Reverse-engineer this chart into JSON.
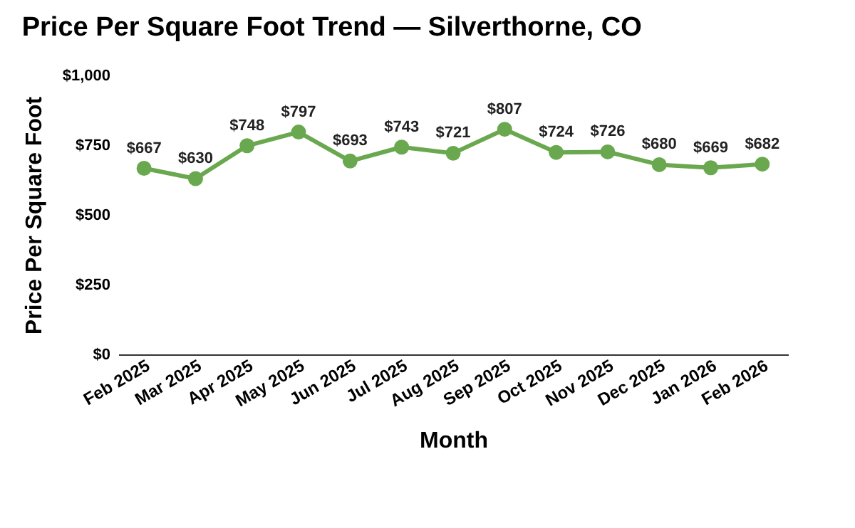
{
  "chart_data": {
    "type": "line",
    "title": "Price Per Square Foot Trend — Silverthorne, CO",
    "xlabel": "Month",
    "ylabel": "Price Per Square Foot",
    "categories": [
      "Feb 2025",
      "Mar 2025",
      "Apr 2025",
      "May 2025",
      "Jun 2025",
      "Jul 2025",
      "Aug 2025",
      "Sep 2025",
      "Oct 2025",
      "Nov 2025",
      "Dec 2025",
      "Jan 2026",
      "Feb 2026"
    ],
    "series": [
      {
        "color": "#6aa84f",
        "values": [
          667,
          630,
          748,
          797,
          693,
          743,
          721,
          807,
          724,
          726,
          680,
          669,
          682
        ],
        "value_labels": [
          "$667",
          "$630",
          "$748",
          "$797",
          "$693",
          "$743",
          "$721",
          "$807",
          "$724",
          "$726",
          "$680",
          "$669",
          "$682"
        ]
      }
    ],
    "ylim": [
      0,
      1000
    ],
    "yticks": [
      {
        "value": 0,
        "label": "$0"
      },
      {
        "value": 250,
        "label": "$250"
      },
      {
        "value": 500,
        "label": "$500"
      },
      {
        "value": 750,
        "label": "$750"
      },
      {
        "value": 1000,
        "label": "$1,000"
      }
    ],
    "marker": "circle",
    "line_style": "solid",
    "grid": false
  }
}
